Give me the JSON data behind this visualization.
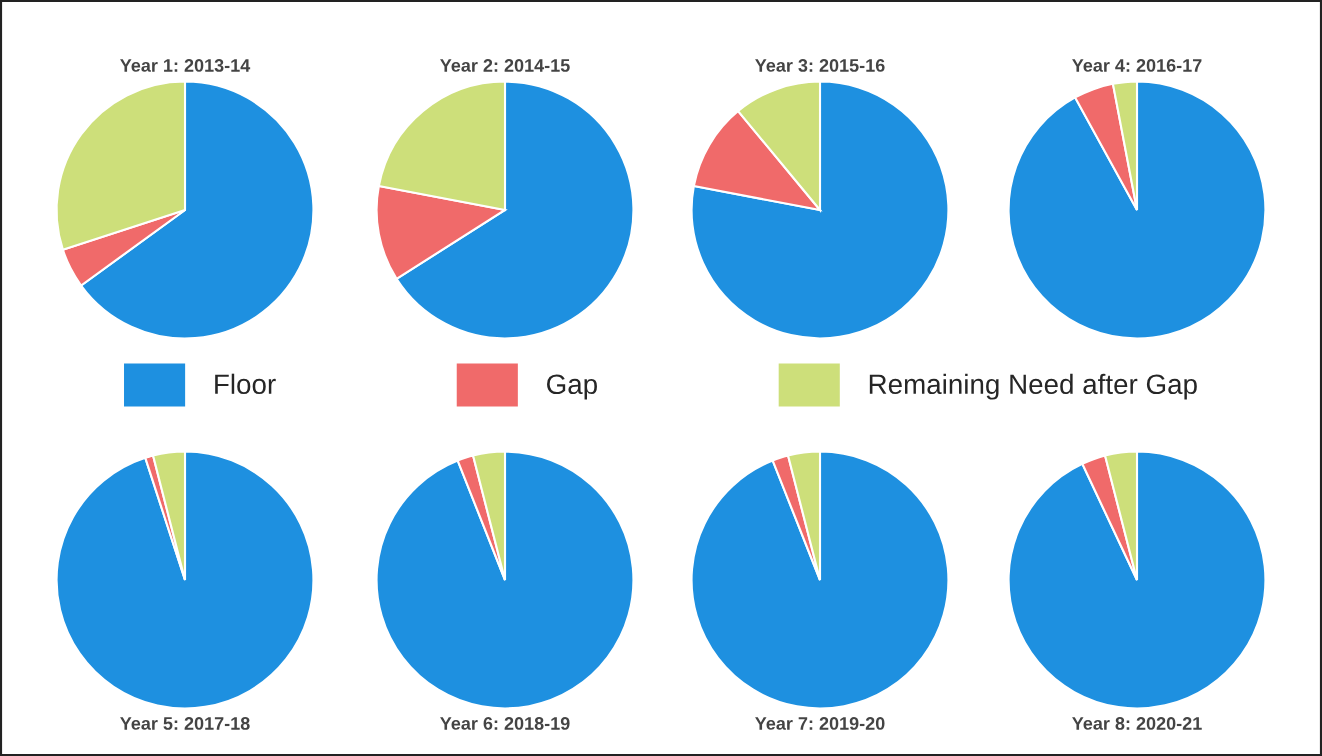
{
  "chart_data": [
    {
      "type": "pie",
      "title": "Year 1: 2013-14",
      "categories": [
        "Floor",
        "Gap",
        "Remaining Need after Gap"
      ],
      "values": [
        65,
        5,
        30
      ],
      "colors": [
        "#1e90e0",
        "#f06a6a",
        "#cddf7a"
      ],
      "legend": "bottom"
    },
    {
      "type": "pie",
      "title": "Year 2: 2014-15",
      "values": [
        66,
        12,
        22
      ],
      "colors": [
        "#1e90e0",
        "#f06a6a",
        "#cddf7a"
      ]
    },
    {
      "type": "pie",
      "title": "Year 3: 2015-16",
      "values": [
        78,
        11,
        11
      ],
      "colors": [
        "#1e90e0",
        "#f06a6a",
        "#cddf7a"
      ]
    },
    {
      "type": "pie",
      "title": "Year 4: 2016-17",
      "values": [
        92,
        5,
        3
      ],
      "colors": [
        "#1e90e0",
        "#f06a6a",
        "#cddf7a"
      ]
    },
    {
      "type": "pie",
      "title": "Year 5: 2017-18",
      "values": [
        95,
        1,
        4
      ],
      "colors": [
        "#1e90e0",
        "#f06a6a",
        "#cddf7a"
      ]
    },
    {
      "type": "pie",
      "title": "Year 6: 2018-19",
      "values": [
        94,
        2,
        4
      ],
      "colors": [
        "#1e90e0",
        "#f06a6a",
        "#cddf7a"
      ]
    },
    {
      "type": "pie",
      "title": "Year 7: 2019-20",
      "values": [
        94,
        2,
        4
      ],
      "colors": [
        "#1e90e0",
        "#f06a6a",
        "#cddf7a"
      ]
    },
    {
      "type": "pie",
      "title": "Year 8: 2020-21",
      "values": [
        93,
        3,
        4
      ],
      "colors": [
        "#1e90e0",
        "#f06a6a",
        "#cddf7a"
      ]
    }
  ]
}
